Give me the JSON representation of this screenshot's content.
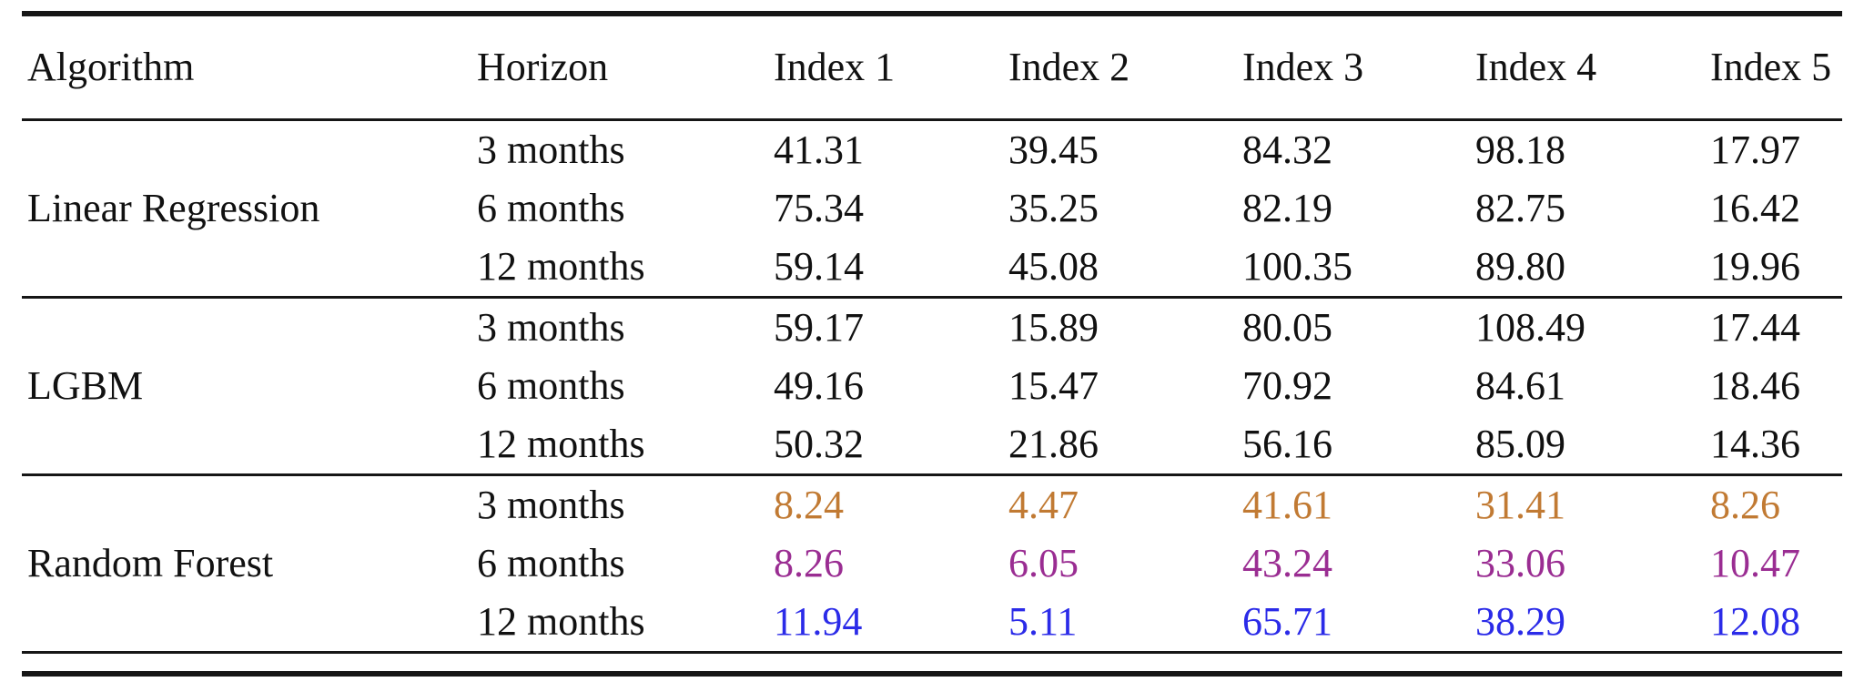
{
  "page": {
    "background": "#ffffff"
  },
  "colors": {
    "rule": "#161616",
    "text": "#111111",
    "random_forest_3_months": "#C17A33",
    "random_forest_6_months": "#9A2D92",
    "random_forest_12_months": "#2B2BE8"
  },
  "table": {
    "columns": [
      "Algorithm",
      "Horizon",
      "Index 1",
      "Index 2",
      "Index 3",
      "Index 4",
      "Index 5"
    ],
    "groups": [
      {
        "algorithm": "Linear Regression",
        "rows": [
          {
            "horizon": "3 months",
            "values": [
              "41.31",
              "39.45",
              "84.32",
              "98.18",
              "17.97"
            ]
          },
          {
            "horizon": "6 months",
            "values": [
              "75.34",
              "35.25",
              "82.19",
              "82.75",
              "16.42"
            ]
          },
          {
            "horizon": "12 months",
            "values": [
              "59.14",
              "45.08",
              "100.35",
              "89.80",
              "19.96"
            ]
          }
        ]
      },
      {
        "algorithm": "LGBM",
        "rows": [
          {
            "horizon": "3 months",
            "values": [
              "59.17",
              "15.89",
              "80.05",
              "108.49",
              "17.44"
            ]
          },
          {
            "horizon": "6 months",
            "values": [
              "49.16",
              "15.47",
              "70.92",
              "84.61",
              "18.46"
            ]
          },
          {
            "horizon": "12 months",
            "values": [
              "50.32",
              "21.86",
              "56.16",
              "85.09",
              "14.36"
            ]
          }
        ]
      },
      {
        "algorithm": "Random Forest",
        "rows": [
          {
            "horizon": "3 months",
            "values": [
              "8.24",
              "4.47",
              "41.61",
              "31.41",
              "8.26"
            ],
            "value_color": "#C17A33"
          },
          {
            "horizon": "6 months",
            "values": [
              "8.26",
              "6.05",
              "43.24",
              "33.06",
              "10.47"
            ],
            "value_color": "#9A2D92"
          },
          {
            "horizon": "12 months",
            "values": [
              "11.94",
              "5.11",
              "65.71",
              "38.29",
              "12.08"
            ],
            "value_color": "#2B2BE8"
          }
        ]
      }
    ]
  }
}
